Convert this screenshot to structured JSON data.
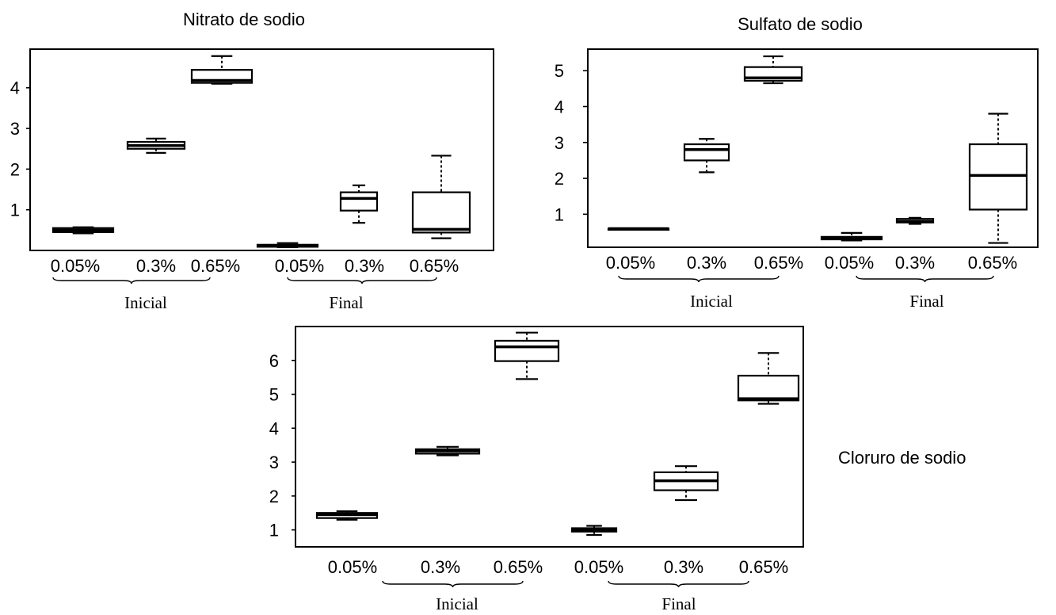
{
  "chart_data": [
    {
      "type": "box",
      "title": "Nitrato de sodio",
      "categories": [
        "0.05%",
        "0.3%",
        "0.65%",
        "0.05%",
        "0.3%",
        "0.65%"
      ],
      "groups": [
        {
          "label": "Inicial",
          "categories": [
            "0.05%",
            "0.3%",
            "0.65%"
          ]
        },
        {
          "label": "Final",
          "categories": [
            "0.05%",
            "0.3%",
            "0.65%"
          ]
        }
      ],
      "yticks": [
        "1",
        "2",
        "3",
        "4"
      ],
      "ylim": [
        0,
        4.95
      ],
      "boxes": [
        {
          "min": 0.42,
          "q1": 0.45,
          "median": 0.5,
          "q3": 0.55,
          "max": 0.57
        },
        {
          "min": 2.4,
          "q1": 2.5,
          "median": 2.58,
          "q3": 2.67,
          "max": 2.75
        },
        {
          "min": 4.1,
          "q1": 4.12,
          "median": 4.18,
          "q3": 4.44,
          "max": 4.78
        },
        {
          "min": 0.08,
          "q1": 0.09,
          "median": 0.12,
          "q3": 0.14,
          "max": 0.18
        },
        {
          "min": 0.68,
          "q1": 0.98,
          "median": 1.28,
          "q3": 1.43,
          "max": 1.6
        },
        {
          "min": 0.3,
          "q1": 0.44,
          "median": 0.52,
          "q3": 1.43,
          "max": 2.33
        }
      ]
    },
    {
      "type": "box",
      "title": "Sulfato de sodio",
      "categories": [
        "0.05%",
        "0.3%",
        "0.65%",
        "0.05%",
        "0.3%",
        "0.65%"
      ],
      "groups": [
        {
          "label": "Inicial",
          "categories": [
            "0.05%",
            "0.3%",
            "0.65%"
          ]
        },
        {
          "label": "Final",
          "categories": [
            "0.05%",
            "0.3%",
            "0.65%"
          ]
        }
      ],
      "yticks": [
        "1",
        "2",
        "3",
        "4",
        "5"
      ],
      "ylim": [
        0.08,
        5.6
      ],
      "boxes": [
        {
          "min": 0.6,
          "q1": 0.6,
          "median": 0.6,
          "q3": 0.6,
          "max": 0.6
        },
        {
          "min": 2.17,
          "q1": 2.5,
          "median": 2.8,
          "q3": 2.95,
          "max": 3.1
        },
        {
          "min": 4.65,
          "q1": 4.72,
          "median": 4.8,
          "q3": 5.1,
          "max": 5.4
        },
        {
          "min": 0.27,
          "q1": 0.3,
          "median": 0.33,
          "q3": 0.37,
          "max": 0.48
        },
        {
          "min": 0.73,
          "q1": 0.77,
          "median": 0.8,
          "q3": 0.87,
          "max": 0.9
        },
        {
          "min": 0.2,
          "q1": 1.13,
          "median": 2.08,
          "q3": 2.95,
          "max": 3.8
        }
      ]
    },
    {
      "type": "box",
      "title": "Cloruro de sodio",
      "categories": [
        "0.05%",
        "0.3%",
        "0.65%",
        "0.05%",
        "0.3%",
        "0.65%"
      ],
      "groups": [
        {
          "label": "Inicial",
          "categories": [
            "0.05%",
            "0.3%",
            "0.65%"
          ]
        },
        {
          "label": "Final",
          "categories": [
            "0.05%",
            "0.3%",
            "0.65%"
          ]
        }
      ],
      "yticks": [
        "1",
        "2",
        "3",
        "4",
        "5",
        "6"
      ],
      "ylim": [
        0.5,
        7.0
      ],
      "boxes": [
        {
          "min": 1.3,
          "q1": 1.35,
          "median": 1.45,
          "q3": 1.5,
          "max": 1.55
        },
        {
          "min": 3.2,
          "q1": 3.25,
          "median": 3.33,
          "q3": 3.38,
          "max": 3.45
        },
        {
          "min": 5.45,
          "q1": 5.98,
          "median": 6.4,
          "q3": 6.58,
          "max": 6.82
        },
        {
          "min": 0.85,
          "q1": 0.95,
          "median": 1.0,
          "q3": 1.05,
          "max": 1.12
        },
        {
          "min": 1.88,
          "q1": 2.17,
          "median": 2.45,
          "q3": 2.7,
          "max": 2.88
        },
        {
          "min": 4.72,
          "q1": 4.82,
          "median": 4.87,
          "q3": 5.55,
          "max": 6.22
        }
      ]
    }
  ]
}
